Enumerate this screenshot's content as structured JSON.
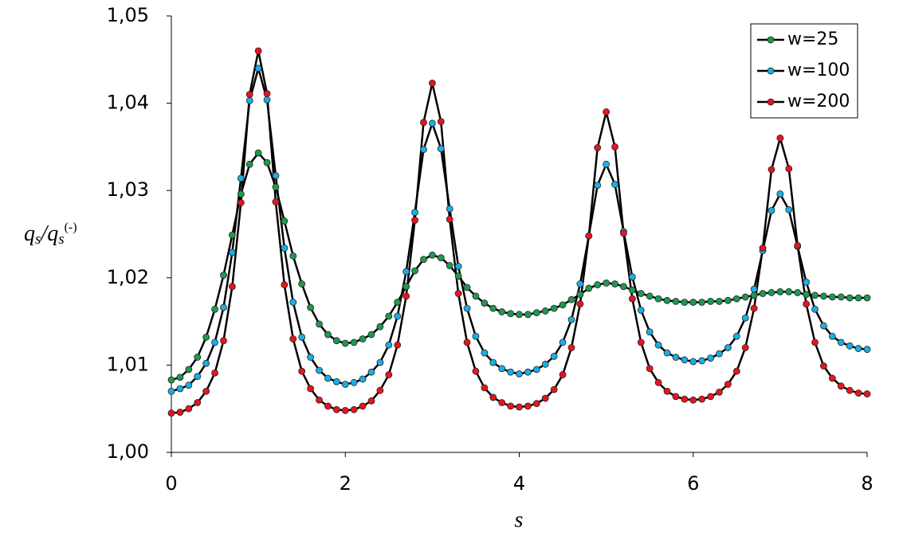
{
  "chart_data": {
    "type": "line",
    "x_label": "s",
    "y_label_parts": [
      "q",
      "s",
      "/",
      "q",
      "s",
      "(-)"
    ],
    "x": [
      0,
      0.1,
      0.2,
      0.3,
      0.4,
      0.5,
      0.6,
      0.7,
      0.8,
      0.9,
      1,
      1.1,
      1.2,
      1.3,
      1.4,
      1.5,
      1.6,
      1.7,
      1.8,
      1.9,
      2,
      2.1,
      2.2,
      2.3,
      2.4,
      2.5,
      2.6,
      2.7,
      2.8,
      2.9,
      3,
      3.1,
      3.2,
      3.3,
      3.4,
      3.5,
      3.6,
      3.7,
      3.8,
      3.9,
      4,
      4.1,
      4.2,
      4.3,
      4.4,
      4.5,
      4.6,
      4.7,
      4.8,
      4.9,
      5,
      5.1,
      5.2,
      5.3,
      5.4,
      5.5,
      5.6,
      5.7,
      5.8,
      5.9,
      6,
      6.1,
      6.2,
      6.3,
      6.4,
      6.5,
      6.6,
      6.7,
      6.8,
      6.9,
      7,
      7.1,
      7.2,
      7.3,
      7.4,
      7.5,
      7.6,
      7.7,
      7.8,
      7.9,
      8
    ],
    "series": [
      {
        "name": "w=25",
        "color": "#1c9a4e",
        "values": [
          1.0083,
          1.0086,
          1.0095,
          1.0109,
          1.0132,
          1.0164,
          1.0203,
          1.0249,
          1.0296,
          1.033,
          1.0343,
          1.0332,
          1.0304,
          1.0265,
          1.0225,
          1.0193,
          1.0166,
          1.0147,
          1.0135,
          1.0128,
          1.0125,
          1.0126,
          1.013,
          1.0135,
          1.0144,
          1.0156,
          1.0172,
          1.019,
          1.0208,
          1.0221,
          1.0226,
          1.0223,
          1.0214,
          1.0202,
          1.0189,
          1.0179,
          1.0171,
          1.0165,
          1.0161,
          1.0159,
          1.0158,
          1.0158,
          1.016,
          1.0162,
          1.0165,
          1.0169,
          1.0175,
          1.0181,
          1.0188,
          1.0192,
          1.0194,
          1.0193,
          1.019,
          1.0186,
          1.0182,
          1.0179,
          1.0176,
          1.0174,
          1.0173,
          1.0172,
          1.0172,
          1.0172,
          1.0173,
          1.0173,
          1.0174,
          1.0176,
          1.0178,
          1.018,
          1.0182,
          1.0183,
          1.0184,
          1.0184,
          1.0183,
          1.0181,
          1.018,
          1.0179,
          1.0178,
          1.0178,
          1.0177,
          1.0177,
          1.0177
        ]
      },
      {
        "name": "w=100",
        "color": "#1aaee6",
        "values": [
          1.007,
          1.0073,
          1.0077,
          1.0087,
          1.0102,
          1.0126,
          1.0166,
          1.0229,
          1.0314,
          1.0403,
          1.044,
          1.0404,
          1.0317,
          1.0234,
          1.0172,
          1.0132,
          1.0109,
          1.0094,
          1.0085,
          1.0081,
          1.0078,
          1.008,
          1.0084,
          1.0092,
          1.0103,
          1.0123,
          1.0156,
          1.0207,
          1.0275,
          1.0347,
          1.0377,
          1.0348,
          1.0279,
          1.0213,
          1.0165,
          1.0133,
          1.0114,
          1.0103,
          1.0096,
          1.0092,
          1.009,
          1.0092,
          1.0095,
          1.0101,
          1.011,
          1.0126,
          1.0152,
          1.0193,
          1.0248,
          1.0306,
          1.033,
          1.0307,
          1.0253,
          1.0201,
          1.0163,
          1.0138,
          1.0123,
          1.0114,
          1.0109,
          1.0106,
          1.0104,
          1.0105,
          1.0108,
          1.0113,
          1.012,
          1.0133,
          1.0154,
          1.0187,
          1.0231,
          1.0277,
          1.0296,
          1.0278,
          1.0236,
          1.0195,
          1.0164,
          1.0145,
          1.0133,
          1.0126,
          1.0122,
          1.0119,
          1.0118
        ]
      },
      {
        "name": "w=200",
        "color": "#e8141c",
        "values": [
          1.0045,
          1.0046,
          1.005,
          1.0057,
          1.007,
          1.0091,
          1.0128,
          1.019,
          1.0286,
          1.041,
          1.046,
          1.0411,
          1.0287,
          1.0192,
          1.013,
          1.0093,
          1.0073,
          1.006,
          1.0053,
          1.0049,
          1.0048,
          1.0049,
          1.0053,
          1.0059,
          1.0071,
          1.0089,
          1.0123,
          1.0179,
          1.0266,
          1.0378,
          1.0423,
          1.0379,
          1.0267,
          1.0182,
          1.0126,
          1.0093,
          1.0074,
          1.0063,
          1.0057,
          1.0053,
          1.0052,
          1.0053,
          1.0056,
          1.0062,
          1.0072,
          1.0089,
          1.012,
          1.017,
          1.0248,
          1.0349,
          1.039,
          1.035,
          1.0251,
          1.0176,
          1.0126,
          1.0096,
          1.008,
          1.007,
          1.0064,
          1.0061,
          1.006,
          1.0061,
          1.0064,
          1.0069,
          1.0078,
          1.0093,
          1.012,
          1.0165,
          1.0234,
          1.0324,
          1.036,
          1.0325,
          1.0237,
          1.017,
          1.0126,
          1.0099,
          1.0085,
          1.0076,
          1.0071,
          1.0068,
          1.0067
        ]
      }
    ],
    "line_color": "#000000",
    "xlim": [
      0,
      8
    ],
    "xticks": [
      0,
      2,
      4,
      6,
      8
    ],
    "ylim": [
      1,
      1.05
    ],
    "yticks": [
      {
        "value": 1,
        "label": "1,00"
      },
      {
        "value": 1.01,
        "label": "1,01"
      },
      {
        "value": 1.02,
        "label": "1,02"
      },
      {
        "value": 1.03,
        "label": "1,03"
      },
      {
        "value": 1.04,
        "label": "1,04"
      },
      {
        "value": 1.05,
        "label": "1,05"
      }
    ],
    "grid": false,
    "legend": "upper right"
  }
}
